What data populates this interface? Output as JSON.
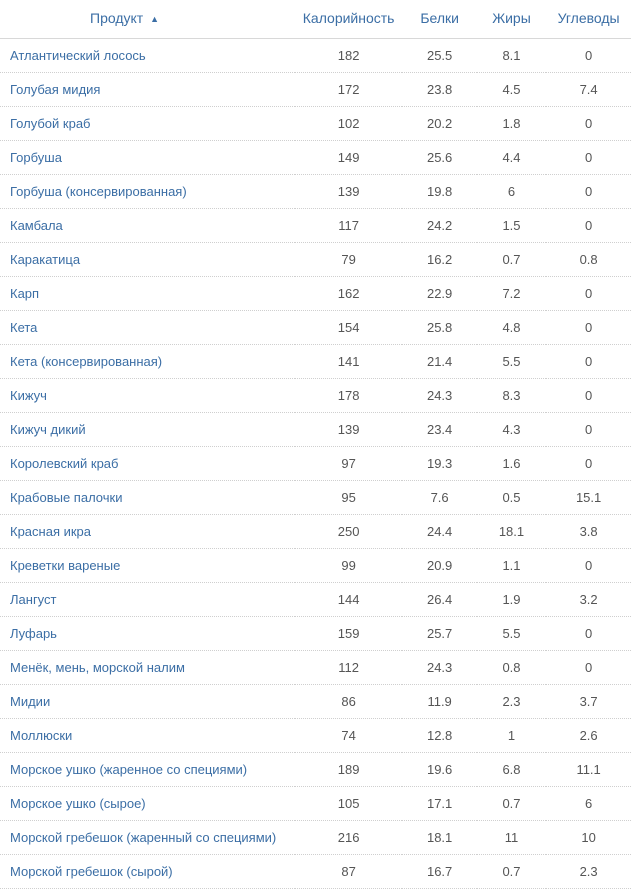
{
  "table": {
    "columns": {
      "product": "Продукт",
      "calories": "Калорийность",
      "protein": "Белки",
      "fat": "Жиры",
      "carbs": "Углеводы"
    },
    "sort_indicator": "▲",
    "rows": [
      {
        "product": "Атлантический лосось",
        "calories": "182",
        "protein": "25.5",
        "fat": "8.1",
        "carbs": "0"
      },
      {
        "product": "Голубая мидия",
        "calories": "172",
        "protein": "23.8",
        "fat": "4.5",
        "carbs": "7.4"
      },
      {
        "product": "Голубой краб",
        "calories": "102",
        "protein": "20.2",
        "fat": "1.8",
        "carbs": "0"
      },
      {
        "product": "Горбуша",
        "calories": "149",
        "protein": "25.6",
        "fat": "4.4",
        "carbs": "0"
      },
      {
        "product": "Горбуша (консервированная)",
        "calories": "139",
        "protein": "19.8",
        "fat": "6",
        "carbs": "0"
      },
      {
        "product": "Камбала",
        "calories": "117",
        "protein": "24.2",
        "fat": "1.5",
        "carbs": "0"
      },
      {
        "product": "Каракатица",
        "calories": "79",
        "protein": "16.2",
        "fat": "0.7",
        "carbs": "0.8"
      },
      {
        "product": "Карп",
        "calories": "162",
        "protein": "22.9",
        "fat": "7.2",
        "carbs": "0"
      },
      {
        "product": "Кета",
        "calories": "154",
        "protein": "25.8",
        "fat": "4.8",
        "carbs": "0"
      },
      {
        "product": "Кета (консервированная)",
        "calories": "141",
        "protein": "21.4",
        "fat": "5.5",
        "carbs": "0"
      },
      {
        "product": "Кижуч",
        "calories": "178",
        "protein": "24.3",
        "fat": "8.3",
        "carbs": "0"
      },
      {
        "product": "Кижуч дикий",
        "calories": "139",
        "protein": "23.4",
        "fat": "4.3",
        "carbs": "0"
      },
      {
        "product": "Королевский краб",
        "calories": "97",
        "protein": "19.3",
        "fat": "1.6",
        "carbs": "0"
      },
      {
        "product": "Крабовые палочки",
        "calories": "95",
        "protein": "7.6",
        "fat": "0.5",
        "carbs": "15.1"
      },
      {
        "product": "Красная икра",
        "calories": "250",
        "protein": "24.4",
        "fat": "18.1",
        "carbs": "3.8"
      },
      {
        "product": "Креветки вареные",
        "calories": "99",
        "protein": "20.9",
        "fat": "1.1",
        "carbs": "0"
      },
      {
        "product": "Лангуст",
        "calories": "144",
        "protein": "26.4",
        "fat": "1.9",
        "carbs": "3.2"
      },
      {
        "product": "Луфарь",
        "calories": "159",
        "protein": "25.7",
        "fat": "5.5",
        "carbs": "0"
      },
      {
        "product": "Менёк, мень, морской налим",
        "calories": "112",
        "protein": "24.3",
        "fat": "0.8",
        "carbs": "0"
      },
      {
        "product": "Мидии",
        "calories": "86",
        "protein": "11.9",
        "fat": "2.3",
        "carbs": "3.7"
      },
      {
        "product": "Моллюски",
        "calories": "74",
        "protein": "12.8",
        "fat": "1",
        "carbs": "2.6"
      },
      {
        "product": "Морское ушко (жаренное со специями)",
        "calories": "189",
        "protein": "19.6",
        "fat": "6.8",
        "carbs": "11.1"
      },
      {
        "product": "Морское ушко (сырое)",
        "calories": "105",
        "protein": "17.1",
        "fat": "0.7",
        "carbs": "6"
      },
      {
        "product": "Морской гребешок (жаренный со специями)",
        "calories": "216",
        "protein": "18.1",
        "fat": "11",
        "carbs": "10"
      },
      {
        "product": "Морской гребешок (сырой)",
        "calories": "87",
        "protein": "16.7",
        "fat": "0.7",
        "carbs": "2.3"
      }
    ]
  }
}
